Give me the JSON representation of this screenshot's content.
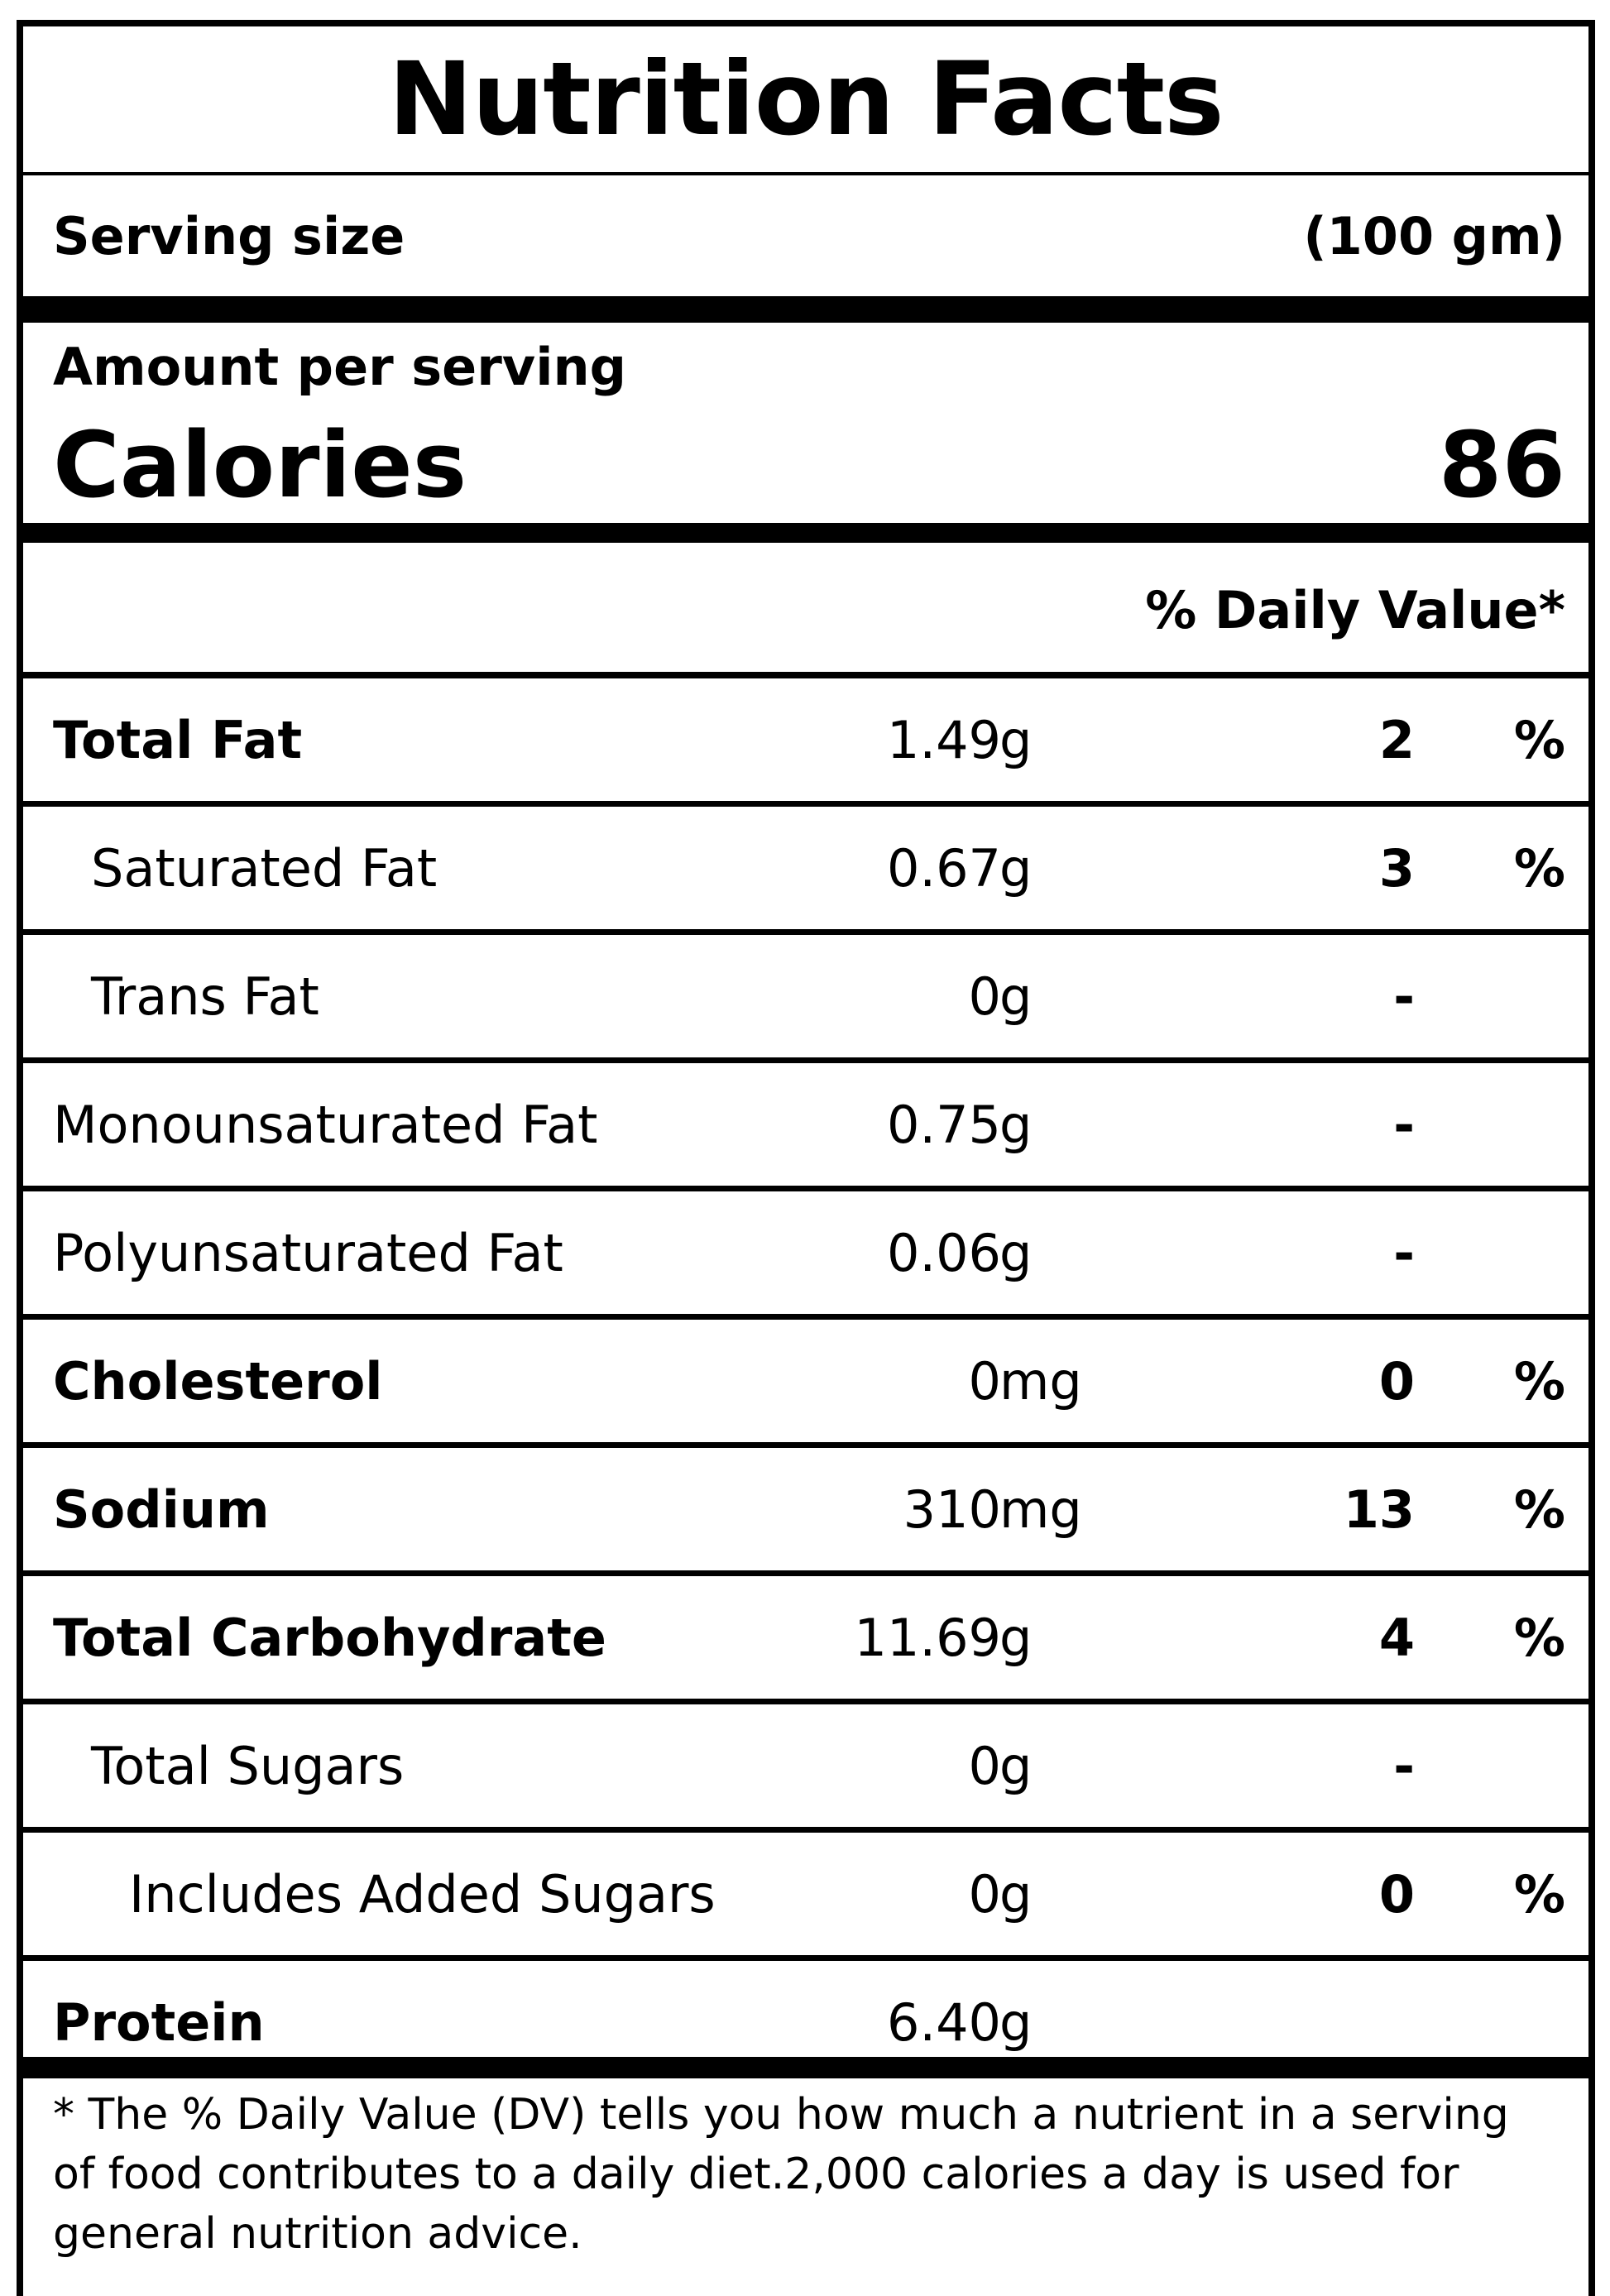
{
  "title": "Nutrition Facts",
  "serving": {
    "label": "Serving size",
    "value": "(100 gm)"
  },
  "amount_per_serving": "Amount per serving",
  "calories": {
    "label": "Calories",
    "value": "86"
  },
  "daily_value_header": "% Daily Value*",
  "nutrients": [
    {
      "name": "Total Fat",
      "amount": "1.49",
      "unit": "g",
      "dv": "2",
      "pct": "%"
    },
    {
      "name": "Saturated Fat",
      "amount": "0.67",
      "unit": "g",
      "dv": "3",
      "pct": "%"
    },
    {
      "name": "Trans Fat",
      "amount": "0",
      "unit": "g",
      "dv": "-",
      "pct": ""
    },
    {
      "name": "Monounsaturated Fat",
      "amount": "0.75",
      "unit": "g",
      "dv": "-",
      "pct": ""
    },
    {
      "name": "Polyunsaturated Fat",
      "amount": "0.06",
      "unit": "g",
      "dv": "-",
      "pct": ""
    },
    {
      "name": "Cholesterol",
      "amount": "0",
      "unit": "mg",
      "dv": "0",
      "pct": "%"
    },
    {
      "name": "Sodium",
      "amount": "310",
      "unit": "mg",
      "dv": "13",
      "pct": "%"
    },
    {
      "name": "Total Carbohydrate",
      "amount": "11.69",
      "unit": "g",
      "dv": "4",
      "pct": "%"
    },
    {
      "name": "Total Sugars",
      "amount": "0",
      "unit": "g",
      "dv": "-",
      "pct": ""
    },
    {
      "name": "Includes Added Sugars",
      "amount": "0",
      "unit": "g",
      "dv": "0",
      "pct": "%"
    },
    {
      "name": "Protein",
      "amount": "6.40",
      "unit": "g",
      "dv": "",
      "pct": ""
    }
  ],
  "footnote": "* The % Daily Value (DV) tells you how much a nutrient in a serving of food contributes to a daily diet.2,000 calories a day is used for general nutrition advice."
}
